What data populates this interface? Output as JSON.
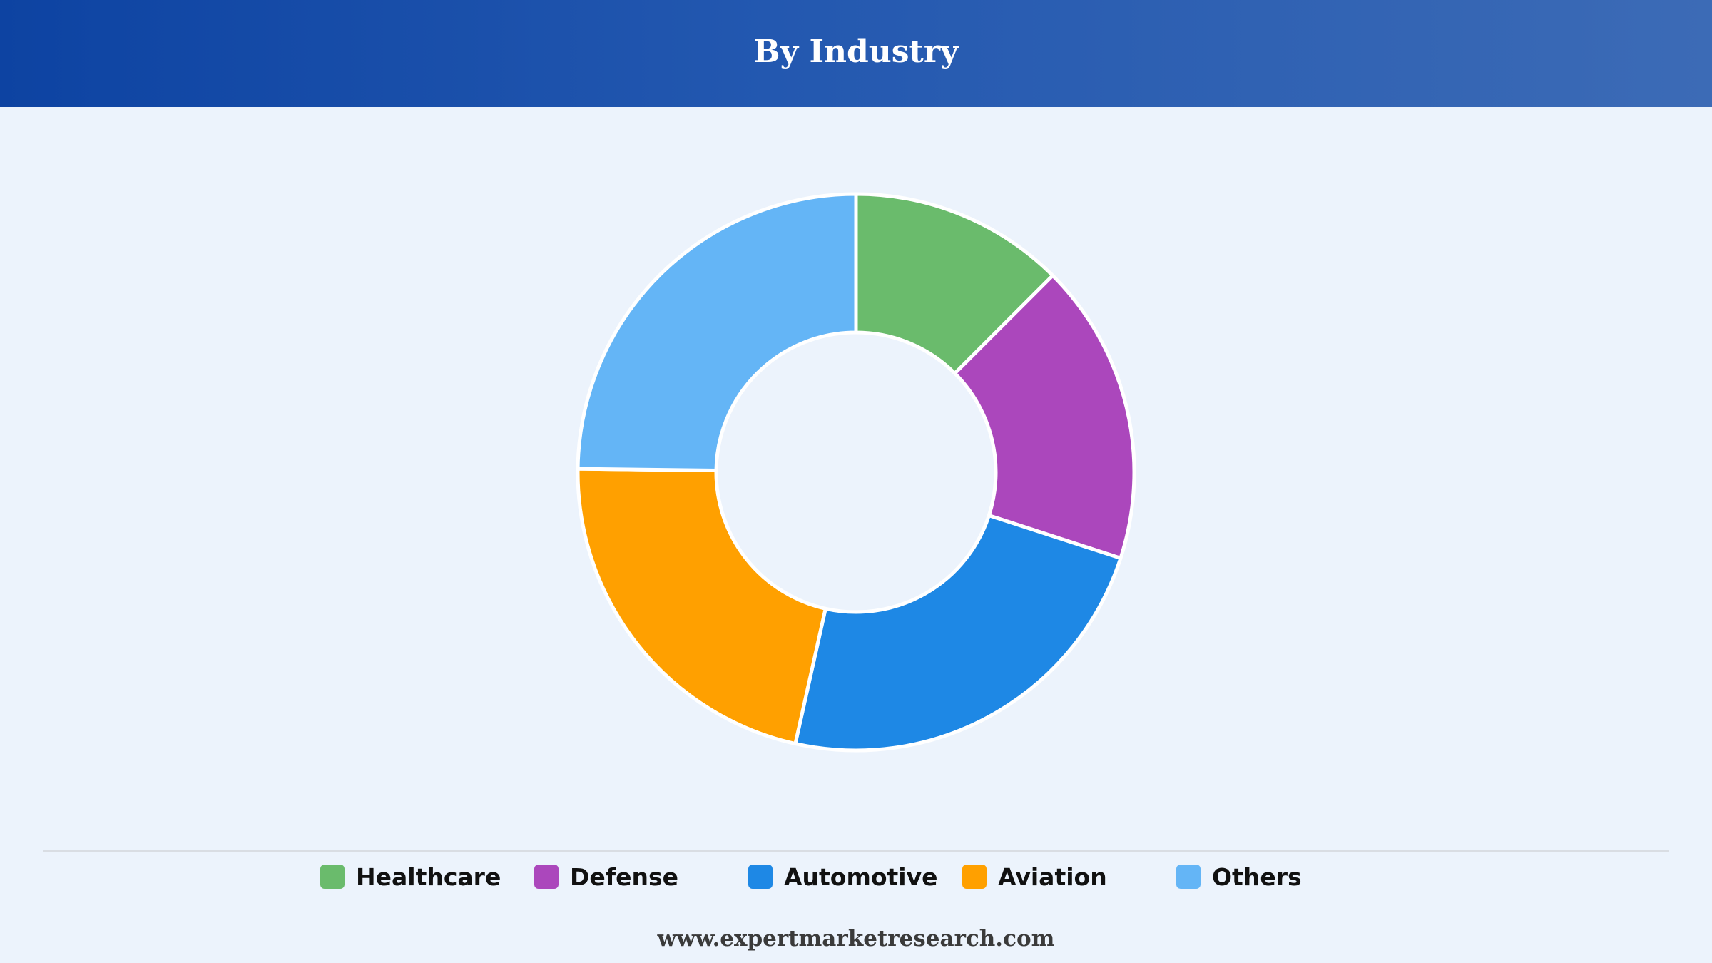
{
  "header": {
    "title": "By Industry"
  },
  "chart_data": {
    "type": "pie",
    "variant": "donut",
    "title": "By Industry",
    "categories": [
      "Healthcare",
      "Defense",
      "Automotive",
      "Aviation",
      "Others"
    ],
    "values": [
      12.5,
      17.5,
      23.5,
      21.7,
      24.8
    ],
    "unit": "%",
    "colors": [
      "#6abb6c",
      "#ab47bc",
      "#1e88e5",
      "#ffa000",
      "#64b5f6"
    ],
    "legend_position": "bottom"
  },
  "legend": {
    "items": [
      {
        "label": "Healthcare",
        "color": "#6abb6c"
      },
      {
        "label": "Defense",
        "color": "#ab47bc"
      },
      {
        "label": "Automotive",
        "color": "#1e88e5"
      },
      {
        "label": "Aviation",
        "color": "#ffa000"
      },
      {
        "label": "Others",
        "color": "#64b5f6"
      }
    ]
  },
  "footer": {
    "text": "www.expertmarketresearch.com"
  }
}
